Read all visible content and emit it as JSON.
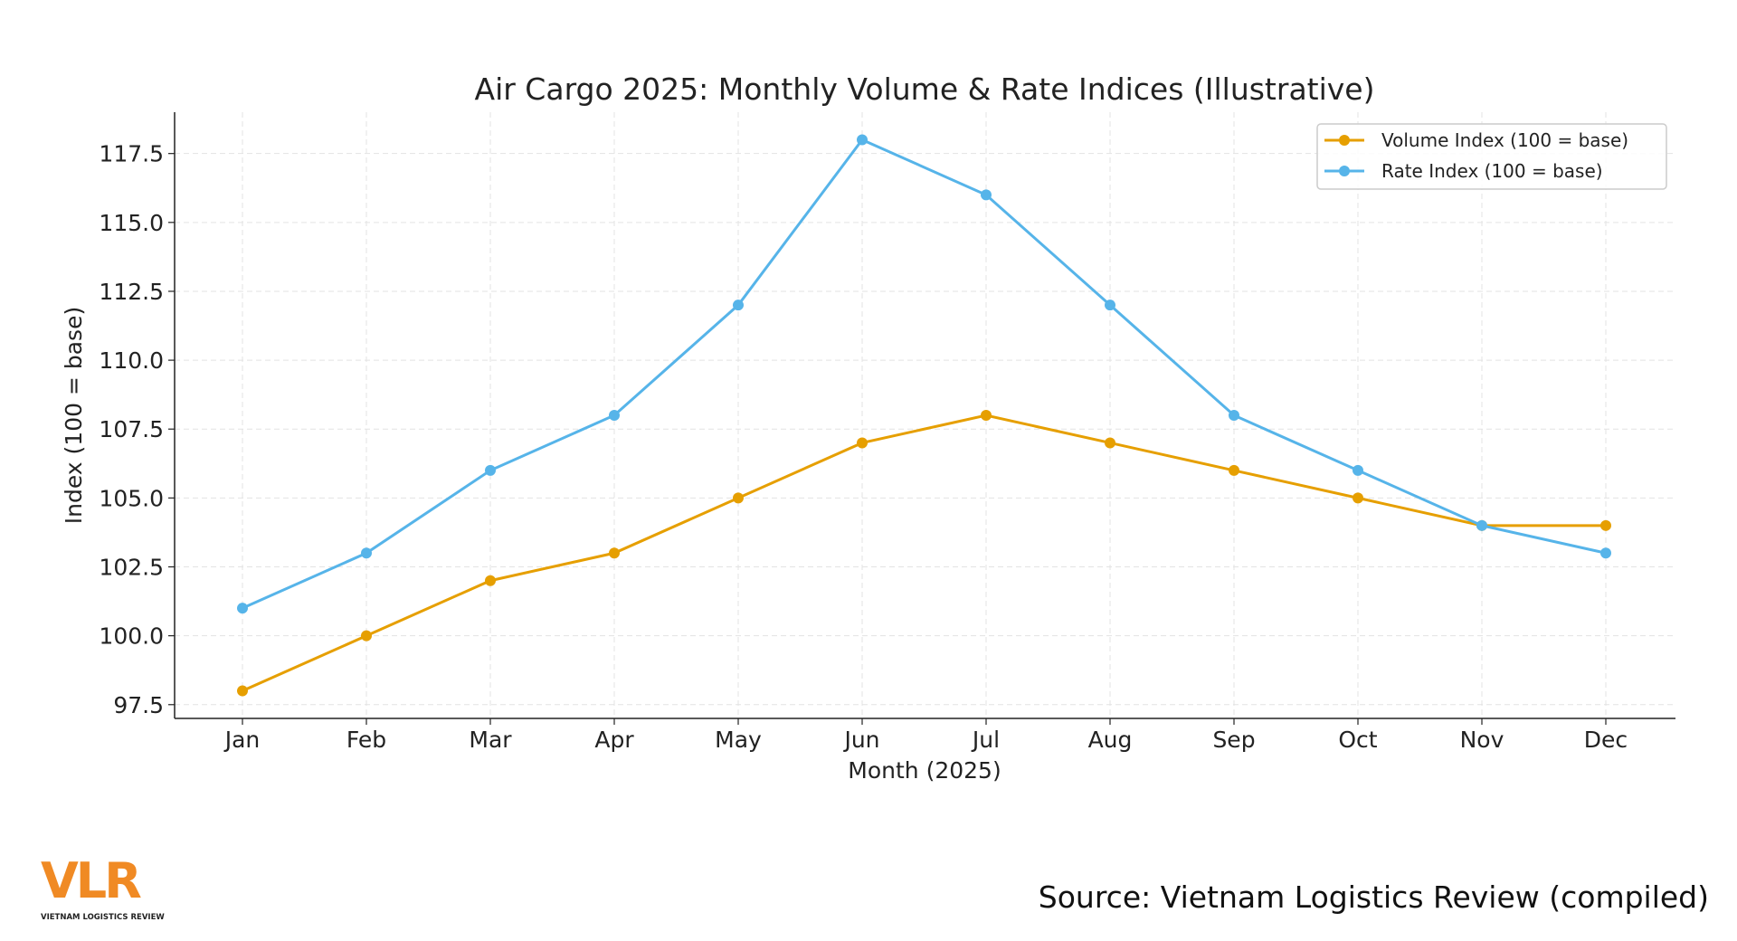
{
  "chart_data": {
    "type": "line",
    "title": "Air Cargo 2025: Monthly Volume & Rate Indices (Illustrative)",
    "xlabel": "Month (2025)",
    "ylabel": "Index (100 = base)",
    "categories": [
      "Jan",
      "Feb",
      "Mar",
      "Apr",
      "May",
      "Jun",
      "Jul",
      "Aug",
      "Sep",
      "Oct",
      "Nov",
      "Dec"
    ],
    "yticks": [
      "97.5",
      "100.0",
      "102.5",
      "105.0",
      "107.5",
      "110.0",
      "112.5",
      "115.0",
      "117.5"
    ],
    "ylim": [
      97.0,
      119.0
    ],
    "grid": true,
    "legend_position": "top-right",
    "series": [
      {
        "name": "Volume Index (100 = base)",
        "color": "#E69F00",
        "values": [
          98,
          100,
          102,
          103,
          105,
          107,
          108,
          107,
          106,
          105,
          104,
          104
        ]
      },
      {
        "name": "Rate Index (100 = base)",
        "color": "#56B4E9",
        "values": [
          101,
          103,
          106,
          108,
          112,
          118,
          116,
          112,
          108,
          106,
          104,
          103
        ]
      }
    ]
  },
  "logo": {
    "text": "VLR",
    "subtitle": "VIETNAM LOGISTICS REVIEW",
    "color": "#F08A24"
  },
  "source": "Source: Vietnam Logistics Review (compiled)"
}
